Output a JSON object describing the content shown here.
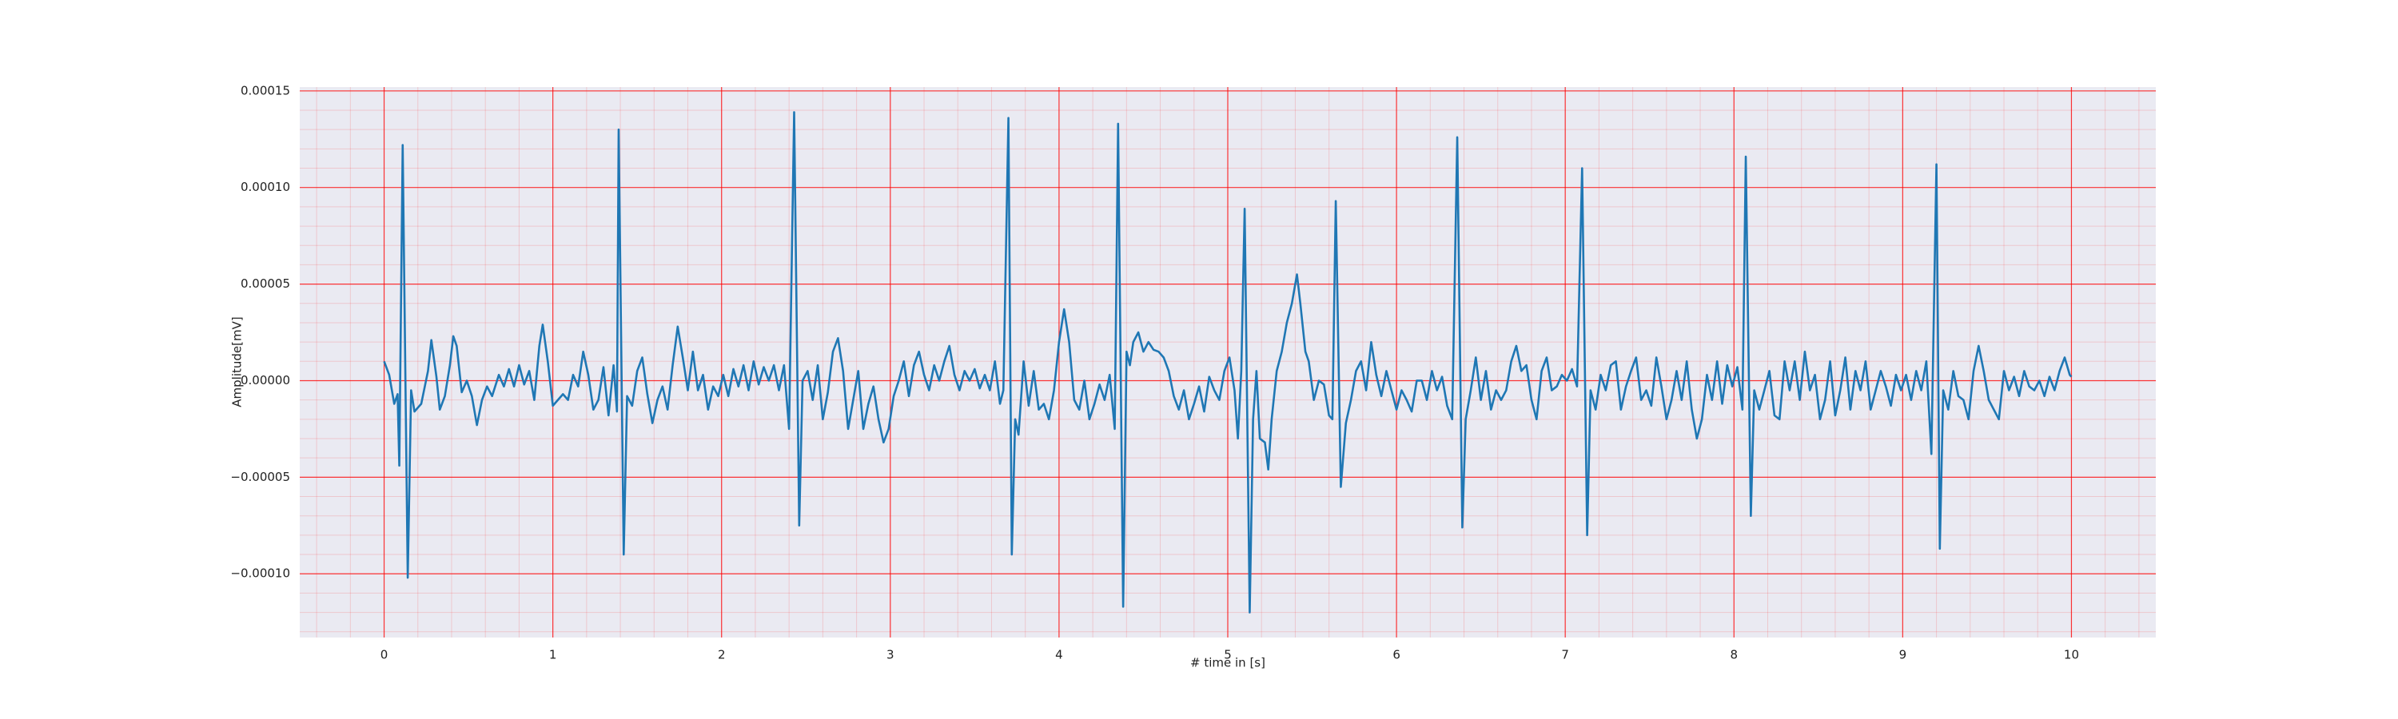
{
  "chart_data": {
    "type": "line",
    "xlabel": "# time in [s]",
    "ylabel": "Amplitude[mV]",
    "color": "#1f77b4",
    "grid": true,
    "minor_grid": true,
    "xlim": [
      -0.5,
      10.5
    ],
    "xticks": [
      0,
      1,
      2,
      3,
      4,
      5,
      6,
      7,
      8,
      9,
      10
    ],
    "ylim": [
      -0.000133,
      0.000152
    ],
    "yticks": [
      {
        "value": -0.0001,
        "label": "−0.00010"
      },
      {
        "value": -5e-05,
        "label": "−0.00005"
      },
      {
        "value": 0,
        "label": "0.00000"
      },
      {
        "value": 5e-05,
        "label": "0.00005"
      },
      {
        "value": 0.0001,
        "label": "0.00010"
      },
      {
        "value": 0.00015,
        "label": "0.00015"
      }
    ],
    "x": [
      0,
      0.03,
      0.06,
      0.08,
      0.09,
      0.11,
      0.14,
      0.16,
      0.18,
      0.22,
      0.26,
      0.28,
      0.31,
      0.33,
      0.36,
      0.39,
      0.41,
      0.43,
      0.46,
      0.49,
      0.52,
      0.55,
      0.58,
      0.61,
      0.64,
      0.68,
      0.71,
      0.74,
      0.77,
      0.8,
      0.83,
      0.86,
      0.89,
      0.92,
      0.94,
      0.97,
      1.0,
      1.03,
      1.06,
      1.09,
      1.12,
      1.15,
      1.18,
      1.21,
      1.24,
      1.27,
      1.3,
      1.33,
      1.36,
      1.38,
      1.39,
      1.42,
      1.44,
      1.47,
      1.5,
      1.53,
      1.56,
      1.59,
      1.62,
      1.65,
      1.68,
      1.71,
      1.74,
      1.77,
      1.8,
      1.83,
      1.86,
      1.89,
      1.92,
      1.95,
      1.98,
      2.01,
      2.04,
      2.07,
      2.1,
      2.13,
      2.16,
      2.19,
      2.22,
      2.25,
      2.28,
      2.31,
      2.34,
      2.37,
      2.4,
      2.43,
      2.46,
      2.48,
      2.51,
      2.54,
      2.57,
      2.6,
      2.63,
      2.66,
      2.69,
      2.72,
      2.75,
      2.78,
      2.81,
      2.84,
      2.87,
      2.9,
      2.93,
      2.96,
      2.99,
      3.02,
      3.05,
      3.08,
      3.11,
      3.14,
      3.17,
      3.2,
      3.23,
      3.26,
      3.29,
      3.32,
      3.35,
      3.38,
      3.41,
      3.44,
      3.47,
      3.5,
      3.53,
      3.56,
      3.59,
      3.62,
      3.65,
      3.67,
      3.7,
      3.72,
      3.74,
      3.76,
      3.79,
      3.82,
      3.85,
      3.88,
      3.91,
      3.94,
      3.97,
      4.0,
      4.03,
      4.06,
      4.09,
      4.12,
      4.15,
      4.18,
      4.21,
      4.24,
      4.27,
      4.3,
      4.33,
      4.35,
      4.38,
      4.4,
      4.42,
      4.44,
      4.47,
      4.5,
      4.53,
      4.56,
      4.59,
      4.62,
      4.65,
      4.68,
      4.71,
      4.74,
      4.77,
      4.8,
      4.83,
      4.86,
      4.89,
      4.92,
      4.95,
      4.98,
      5.01,
      5.04,
      5.06,
      5.08,
      5.1,
      5.13,
      5.15,
      5.17,
      5.19,
      5.22,
      5.24,
      5.26,
      5.29,
      5.32,
      5.35,
      5.38,
      5.41,
      5.43,
      5.46,
      5.48,
      5.51,
      5.54,
      5.57,
      5.6,
      5.62,
      5.64,
      5.67,
      5.7,
      5.73,
      5.76,
      5.79,
      5.82,
      5.85,
      5.88,
      5.91,
      5.94,
      5.97,
      6.0,
      6.03,
      6.06,
      6.09,
      6.12,
      6.15,
      6.18,
      6.21,
      6.24,
      6.27,
      6.3,
      6.33,
      6.36,
      6.39,
      6.41,
      6.44,
      6.47,
      6.5,
      6.53,
      6.56,
      6.59,
      6.62,
      6.65,
      6.68,
      6.71,
      6.74,
      6.77,
      6.8,
      6.83,
      6.86,
      6.89,
      6.92,
      6.95,
      6.98,
      7.01,
      7.04,
      7.07,
      7.1,
      7.13,
      7.15,
      7.18,
      7.21,
      7.24,
      7.27,
      7.3,
      7.33,
      7.36,
      7.39,
      7.42,
      7.45,
      7.48,
      7.51,
      7.54,
      7.57,
      7.6,
      7.63,
      7.66,
      7.69,
      7.72,
      7.75,
      7.78,
      7.81,
      7.84,
      7.87,
      7.9,
      7.93,
      7.96,
      7.99,
      8.02,
      8.05,
      8.07,
      8.1,
      8.12,
      8.15,
      8.18,
      8.21,
      8.24,
      8.27,
      8.3,
      8.33,
      8.36,
      8.39,
      8.42,
      8.45,
      8.48,
      8.51,
      8.54,
      8.57,
      8.6,
      8.63,
      8.66,
      8.69,
      8.72,
      8.75,
      8.78,
      8.81,
      8.84,
      8.87,
      8.9,
      8.93,
      8.96,
      8.99,
      9.02,
      9.05,
      9.08,
      9.11,
      9.14,
      9.17,
      9.2,
      9.22,
      9.24,
      9.27,
      9.3,
      9.33,
      9.36,
      9.39,
      9.42,
      9.45,
      9.48,
      9.51,
      9.54,
      9.57,
      9.6,
      9.63,
      9.66,
      9.69,
      9.72,
      9.75,
      9.78,
      9.81,
      9.84,
      9.87,
      9.9,
      9.93,
      9.96,
      9.99,
      10.0
    ],
    "values": [
      1e-05,
      3e-06,
      -1.2e-05,
      -7e-06,
      -4.4e-05,
      0.000122,
      -0.000102,
      -5e-06,
      -1.6e-05,
      -1.2e-05,
      5e-06,
      2.1e-05,
      2e-06,
      -1.5e-05,
      -8e-06,
      8e-06,
      2.3e-05,
      1.8e-05,
      -6e-06,
      0,
      -8e-06,
      -2.3e-05,
      -1e-05,
      -3e-06,
      -8e-06,
      3e-06,
      -3e-06,
      6e-06,
      -3e-06,
      8e-06,
      -2e-06,
      5e-06,
      -1e-05,
      1.8e-05,
      2.9e-05,
      1e-05,
      -1.3e-05,
      -1e-05,
      -7e-06,
      -1e-05,
      3e-06,
      -3e-06,
      1.5e-05,
      3e-06,
      -1.5e-05,
      -1e-05,
      7e-06,
      -1.8e-05,
      8e-06,
      -1.6e-05,
      0.00013,
      -9e-05,
      -8e-06,
      -1.3e-05,
      5e-06,
      1.2e-05,
      -7e-06,
      -2.2e-05,
      -1e-05,
      -3e-06,
      -1.5e-05,
      8e-06,
      2.8e-05,
      1.2e-05,
      -5e-06,
      1.5e-05,
      -5e-06,
      3e-06,
      -1.5e-05,
      -3e-06,
      -8e-06,
      3e-06,
      -8e-06,
      6e-06,
      -3e-06,
      8e-06,
      -5e-06,
      1e-05,
      -2e-06,
      7e-06,
      0,
      8e-06,
      -5e-06,
      8e-06,
      -2.5e-05,
      0.000139,
      -7.5e-05,
      0,
      5e-06,
      -1e-05,
      8e-06,
      -2e-05,
      -6e-06,
      1.5e-05,
      2.2e-05,
      5e-06,
      -2.5e-05,
      -1e-05,
      5e-06,
      -2.5e-05,
      -1.2e-05,
      -3e-06,
      -2e-05,
      -3.2e-05,
      -2.5e-05,
      -8e-06,
      0,
      1e-05,
      -8e-06,
      8e-06,
      1.5e-05,
      3e-06,
      -5e-06,
      8e-06,
      0,
      1e-05,
      1.8e-05,
      3e-06,
      -5e-06,
      5e-06,
      0,
      6e-06,
      -4e-06,
      3e-06,
      -5e-06,
      1e-05,
      -1.2e-05,
      -5e-06,
      0.000136,
      -9e-05,
      -2e-05,
      -2.8e-05,
      1e-05,
      -1.3e-05,
      5e-06,
      -1.5e-05,
      -1.2e-05,
      -2e-05,
      -5e-06,
      2e-05,
      3.7e-05,
      2e-05,
      -1e-05,
      -1.5e-05,
      0,
      -2e-05,
      -1.2e-05,
      -2e-06,
      -1e-05,
      3e-06,
      -2.5e-05,
      0.000133,
      -0.000117,
      1.5e-05,
      8e-06,
      2e-05,
      2.5e-05,
      1.5e-05,
      2e-05,
      1.6e-05,
      1.5e-05,
      1.2e-05,
      5e-06,
      -8e-06,
      -1.5e-05,
      -5e-06,
      -2e-05,
      -1.2e-05,
      -3e-06,
      -1.6e-05,
      2e-06,
      -5e-06,
      -1e-05,
      5e-06,
      1.2e-05,
      -5e-06,
      -3e-05,
      5e-06,
      8.9e-05,
      -0.00012,
      -2e-05,
      5e-06,
      -3e-05,
      -3.2e-05,
      -4.6e-05,
      -2e-05,
      5e-06,
      1.5e-05,
      3e-05,
      4e-05,
      5.5e-05,
      4e-05,
      1.5e-05,
      1e-05,
      -1e-05,
      0,
      -2e-06,
      -1.8e-05,
      -2e-05,
      9.3e-05,
      -5.5e-05,
      -2.2e-05,
      -1e-05,
      5e-06,
      1e-05,
      -5e-06,
      2e-05,
      3e-06,
      -8e-06,
      5e-06,
      -5e-06,
      -1.5e-05,
      -5e-06,
      -1e-05,
      -1.6e-05,
      0,
      0,
      -1e-05,
      5e-06,
      -5e-06,
      2e-06,
      -1.3e-05,
      -2e-05,
      0.000126,
      -7.6e-05,
      -2e-05,
      -5e-06,
      1.2e-05,
      -1e-05,
      5e-06,
      -1.5e-05,
      -5e-06,
      -1e-05,
      -5e-06,
      1e-05,
      1.8e-05,
      5e-06,
      8e-06,
      -1e-05,
      -2e-05,
      5e-06,
      1.2e-05,
      -5e-06,
      -3e-06,
      3e-06,
      0,
      6e-06,
      -3e-06,
      0.00011,
      -8e-05,
      -5e-06,
      -1.5e-05,
      3e-06,
      -5e-06,
      8e-06,
      1e-05,
      -1.5e-05,
      -3e-06,
      5e-06,
      1.2e-05,
      -1e-05,
      -5e-06,
      -1.3e-05,
      1.2e-05,
      -3e-06,
      -2e-05,
      -1e-05,
      5e-06,
      -1e-05,
      1e-05,
      -1.5e-05,
      -3e-05,
      -2e-05,
      3e-06,
      -1e-05,
      1e-05,
      -1.2e-05,
      8e-06,
      -3e-06,
      7e-06,
      -1.5e-05,
      0.000116,
      -7e-05,
      -5e-06,
      -1.5e-05,
      -5e-06,
      5e-06,
      -1.8e-05,
      -2e-05,
      1e-05,
      -5e-06,
      1e-05,
      -1e-05,
      1.5e-05,
      -5e-06,
      3e-06,
      -2e-05,
      -1e-05,
      1e-05,
      -1.8e-05,
      -5e-06,
      1.2e-05,
      -1.5e-05,
      5e-06,
      -5e-06,
      1e-05,
      -1.5e-05,
      -5e-06,
      5e-06,
      -3e-06,
      -1.3e-05,
      3e-06,
      -5e-06,
      3e-06,
      -1e-05,
      5e-06,
      -5e-06,
      1e-05,
      -3.8e-05,
      0.000112,
      -8.7e-05,
      -5e-06,
      -1.5e-05,
      5e-06,
      -8e-06,
      -1e-05,
      -2e-05,
      5e-06,
      1.8e-05,
      5e-06,
      -1e-05,
      -1.5e-05,
      -2e-05,
      5e-06,
      -5e-06,
      2e-06,
      -8e-06,
      5e-06,
      -3e-06,
      -5e-06,
      0,
      -8e-06,
      2e-06,
      -5e-06,
      5e-06,
      1.2e-05,
      3e-06,
      2e-06
    ]
  }
}
